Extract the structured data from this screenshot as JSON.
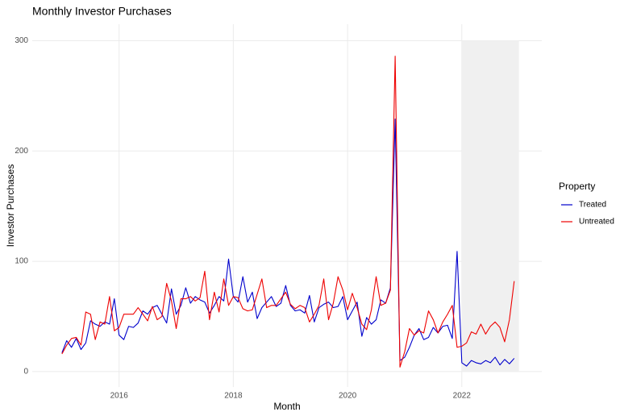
{
  "chart_data": {
    "type": "line",
    "title": "Monthly Investor Purchases",
    "x_label": "Month",
    "y_label": "Investor Purchases",
    "legend_title": "Property",
    "legend_position": "right",
    "grid": true,
    "xlim": [
      2014.48,
      2023.4
    ],
    "xticks": [
      2016,
      2018,
      2020,
      2022
    ],
    "ylim": [
      -14,
      315
    ],
    "yticks": [
      0,
      100,
      200,
      300
    ],
    "shade": {
      "xlim": [
        2022,
        2023
      ],
      "ylim": [
        0,
        300
      ],
      "color": "#f0f0f0"
    },
    "x": [
      2015.0,
      2015.083,
      2015.167,
      2015.25,
      2015.333,
      2015.417,
      2015.5,
      2015.583,
      2015.667,
      2015.75,
      2015.833,
      2015.917,
      2016.0,
      2016.083,
      2016.167,
      2016.25,
      2016.333,
      2016.417,
      2016.5,
      2016.583,
      2016.667,
      2016.75,
      2016.833,
      2016.917,
      2017.0,
      2017.083,
      2017.167,
      2017.25,
      2017.333,
      2017.417,
      2017.5,
      2017.583,
      2017.667,
      2017.75,
      2017.833,
      2017.917,
      2018.0,
      2018.083,
      2018.167,
      2018.25,
      2018.333,
      2018.417,
      2018.5,
      2018.583,
      2018.667,
      2018.75,
      2018.833,
      2018.917,
      2019.0,
      2019.083,
      2019.167,
      2019.25,
      2019.333,
      2019.417,
      2019.5,
      2019.583,
      2019.667,
      2019.75,
      2019.833,
      2019.917,
      2020.0,
      2020.083,
      2020.167,
      2020.25,
      2020.333,
      2020.417,
      2020.5,
      2020.583,
      2020.667,
      2020.75,
      2020.833,
      2020.917,
      2021.0,
      2021.083,
      2021.167,
      2021.25,
      2021.333,
      2021.417,
      2021.5,
      2021.583,
      2021.667,
      2021.75,
      2021.833,
      2021.917,
      2022.0,
      2022.083,
      2022.167,
      2022.25,
      2022.333,
      2022.417,
      2022.5,
      2022.583,
      2022.667,
      2022.75,
      2022.833,
      2022.917
    ],
    "series": [
      {
        "name": "Treated",
        "color": "#0000cc",
        "values": [
          17,
          28,
          22,
          30,
          20,
          26,
          46,
          43,
          41,
          45,
          43,
          66,
          33,
          29,
          41,
          40,
          44,
          55,
          52,
          58,
          60,
          52,
          44,
          75,
          52,
          60,
          76,
          62,
          68,
          65,
          63,
          53,
          60,
          68,
          64,
          102,
          68,
          63,
          86,
          63,
          72,
          48,
          58,
          63,
          68,
          59,
          62,
          78,
          60,
          55,
          56,
          53,
          69,
          45,
          58,
          61,
          63,
          58,
          59,
          68,
          47,
          55,
          63,
          32,
          49,
          43,
          47,
          65,
          62,
          76,
          229,
          10,
          13,
          22,
          33,
          39,
          29,
          31,
          40,
          35,
          41,
          42,
          30,
          109,
          8,
          5,
          10,
          8,
          7,
          10,
          8,
          13,
          6,
          11,
          7,
          12
        ]
      },
      {
        "name": "Untreated",
        "color": "#ee0000",
        "values": [
          16,
          24,
          30,
          31,
          24,
          54,
          52,
          29,
          45,
          43,
          68,
          37,
          40,
          52,
          52,
          52,
          58,
          52,
          46,
          59,
          47,
          50,
          80,
          64,
          39,
          66,
          66,
          68,
          64,
          67,
          91,
          47,
          72,
          54,
          84,
          60,
          68,
          67,
          57,
          55,
          56,
          70,
          84,
          58,
          60,
          60,
          66,
          72,
          61,
          57,
          60,
          58,
          45,
          52,
          60,
          84,
          47,
          62,
          86,
          74,
          56,
          71,
          58,
          43,
          38,
          56,
          86,
          60,
          62,
          74,
          286,
          4,
          18,
          39,
          33,
          37,
          35,
          55,
          47,
          35,
          45,
          52,
          60,
          22,
          23,
          26,
          36,
          34,
          43,
          34,
          41,
          45,
          40,
          27,
          47,
          82
        ]
      }
    ]
  }
}
